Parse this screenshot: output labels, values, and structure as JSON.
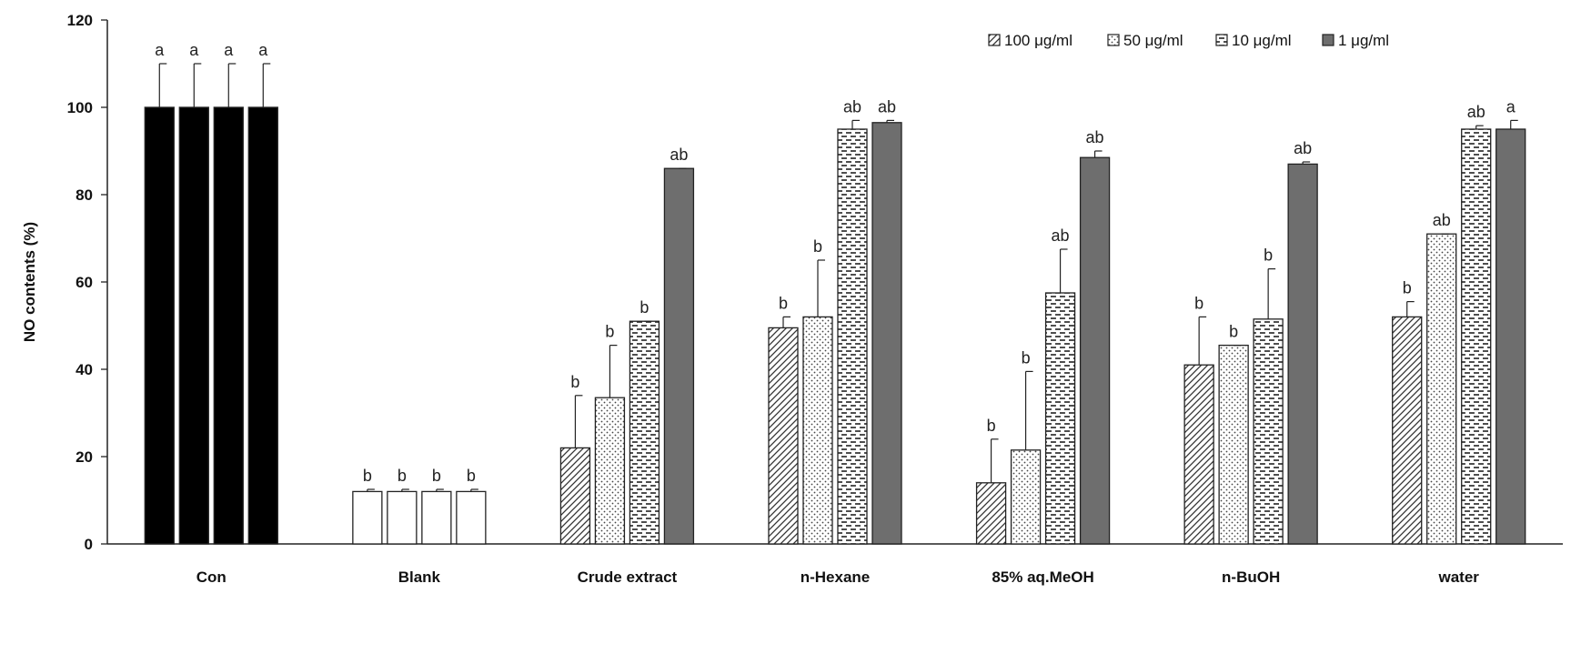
{
  "chart_data": {
    "type": "bar",
    "title": "",
    "xlabel": "",
    "ylabel": "NO contents (%)",
    "ylim": [
      0,
      120
    ],
    "yticks": [
      0,
      20,
      40,
      60,
      80,
      100,
      120
    ],
    "grid": false,
    "legend_position": "top-right",
    "categories": [
      "Con",
      "Blank",
      "Crude extract",
      "n-Hexane",
      "85% aq.MeOH",
      "n-BuOH",
      "water"
    ],
    "series": [
      {
        "name": "100 μg/ml",
        "pattern": "diagonal",
        "values": [
          100,
          12,
          22,
          49.5,
          14,
          41,
          52
        ],
        "errors": [
          10,
          0.5,
          12,
          2.5,
          10,
          11,
          3.5
        ],
        "labels": [
          "a",
          "b",
          "b",
          "b",
          "b",
          "b",
          "b"
        ]
      },
      {
        "name": "50 μg/ml",
        "pattern": "dots",
        "values": [
          100,
          12,
          33.5,
          52,
          21.5,
          45.5,
          71
        ],
        "errors": [
          10,
          0.5,
          12,
          13,
          18,
          0,
          0
        ],
        "labels": [
          "a",
          "b",
          "b",
          "b",
          "b",
          "b",
          "ab"
        ]
      },
      {
        "name": "10 μg/ml",
        "pattern": "dashes",
        "values": [
          100,
          12,
          51,
          95,
          57.5,
          51.5,
          95
        ],
        "errors": [
          10,
          0.5,
          0,
          2,
          10,
          11.5,
          0.8
        ],
        "labels": [
          "a",
          "b",
          "b",
          "ab",
          "ab",
          "b",
          "ab"
        ]
      },
      {
        "name": "1 μg/ml",
        "pattern": "solid-gray",
        "values": [
          100,
          12,
          86,
          96.5,
          88.5,
          87,
          95
        ],
        "errors": [
          10,
          0.5,
          0,
          0.5,
          1.5,
          0.5,
          2
        ],
        "labels": [
          "a",
          "b",
          "ab",
          "ab",
          "ab",
          "ab",
          "a"
        ]
      }
    ],
    "special_fills": {
      "Con": "#000000",
      "Blank": "#ffffff"
    },
    "colors": {
      "bar_stroke": "#222222",
      "gray_fill": "#6e6e6e",
      "axis": "#222222"
    }
  }
}
